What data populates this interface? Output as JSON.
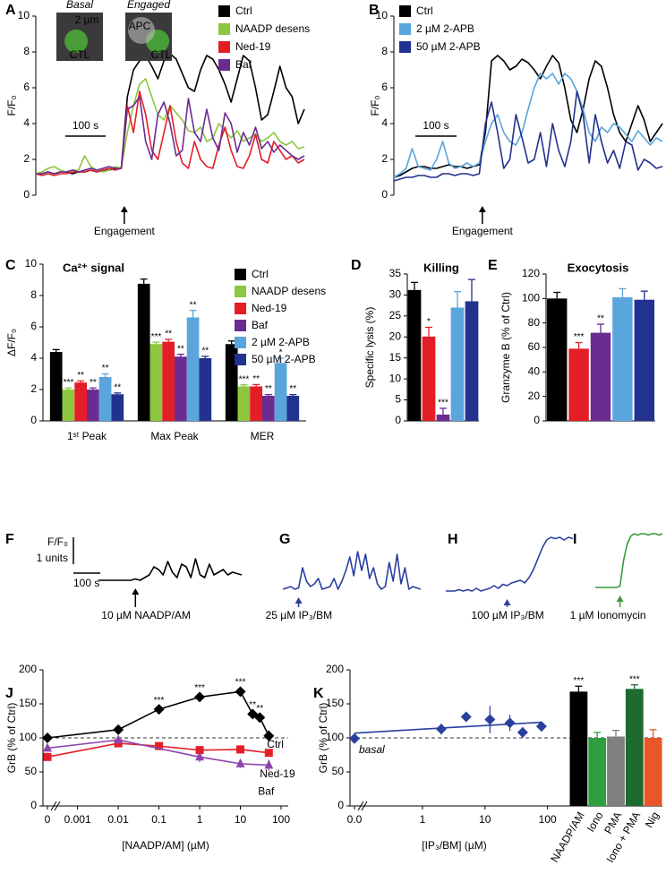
{
  "chart_data": [
    {
      "type": "line",
      "panel": "A",
      "ylabel": "F/F₀",
      "ylim": [
        0,
        10
      ],
      "yticks": [
        0,
        2,
        4,
        6,
        8,
        10
      ],
      "scale_bar": "100 s",
      "annotation": "Engagement",
      "insets": [
        {
          "title": "Basal",
          "labels": [
            "2 µm",
            "CTL"
          ]
        },
        {
          "title": "Engaged",
          "labels": [
            "APC",
            "CTL"
          ]
        }
      ],
      "series": [
        {
          "name": "Ctrl",
          "color": "#000000",
          "values": [
            1.2,
            1.2,
            1.3,
            1.2,
            1.3,
            1.3,
            1.2,
            1.3,
            1.3,
            1.4,
            1.3,
            1.4,
            1.4,
            1.5,
            1.5,
            5.5,
            7.0,
            7.5,
            7.8,
            7.2,
            6.5,
            7.5,
            7.9,
            7.6,
            6.8,
            6.0,
            5.8,
            7.0,
            7.8,
            7.6,
            7.0,
            6.2,
            5.2,
            6.5,
            7.8,
            7.5,
            6.0,
            4.2,
            4.5,
            5.8,
            7.2,
            6.0,
            5.5,
            4.0,
            4.8
          ]
        },
        {
          "name": "NAADP desens",
          "color": "#8dc63f",
          "values": [
            1.2,
            1.3,
            1.5,
            1.6,
            1.4,
            1.3,
            1.4,
            1.4,
            2.2,
            1.6,
            1.4,
            1.3,
            1.4,
            1.6,
            1.5,
            3.5,
            5.0,
            6.2,
            6.5,
            5.5,
            4.5,
            4.2,
            5.0,
            4.6,
            4.2,
            3.6,
            3.5,
            3.8,
            3.0,
            3.2,
            4.0,
            3.6,
            3.2,
            3.6,
            3.0,
            3.2,
            3.4,
            3.0,
            3.2,
            3.5,
            3.0,
            2.8,
            3.0,
            2.6,
            2.7
          ]
        },
        {
          "name": "Ned-19",
          "color": "#e41e26",
          "values": [
            1.2,
            1.1,
            1.2,
            1.1,
            1.2,
            1.2,
            1.3,
            1.3,
            1.3,
            1.4,
            1.3,
            1.4,
            1.5,
            1.4,
            1.5,
            5.0,
            3.5,
            5.8,
            4.5,
            2.5,
            2.0,
            3.5,
            5.0,
            3.0,
            1.8,
            1.5,
            3.0,
            2.0,
            1.6,
            1.5,
            2.8,
            3.8,
            2.5,
            1.6,
            1.5,
            2.2,
            3.4,
            2.0,
            1.8,
            3.0,
            2.5,
            2.0,
            2.2,
            1.8,
            2.0
          ]
        },
        {
          "name": "Baf",
          "color": "#6a2c91",
          "values": [
            1.2,
            1.2,
            1.3,
            1.2,
            1.3,
            1.3,
            1.4,
            1.3,
            1.4,
            1.5,
            1.4,
            1.5,
            1.6,
            1.5,
            1.5,
            4.8,
            5.0,
            5.5,
            3.0,
            2.0,
            4.5,
            5.2,
            4.0,
            2.2,
            2.5,
            5.4,
            3.5,
            3.0,
            4.8,
            3.2,
            2.5,
            4.6,
            4.0,
            2.4,
            3.5,
            2.8,
            3.8,
            2.6,
            3.0,
            2.4,
            2.8,
            2.5,
            2.2,
            2.0,
            2.2
          ]
        }
      ]
    },
    {
      "type": "line",
      "panel": "B",
      "ylabel": "F/F₀",
      "ylim": [
        0,
        10
      ],
      "yticks": [
        0,
        2,
        4,
        6,
        8,
        10
      ],
      "scale_bar": "100 s",
      "annotation": "Engagement",
      "series": [
        {
          "name": "Ctrl",
          "color": "#000000",
          "values": [
            1.0,
            1.1,
            1.3,
            1.5,
            1.6,
            1.6,
            1.5,
            1.5,
            1.6,
            1.7,
            1.6,
            1.6,
            1.5,
            1.6,
            1.7,
            3.5,
            7.5,
            7.8,
            7.5,
            7.0,
            7.2,
            7.6,
            7.4,
            7.0,
            6.5,
            7.2,
            7.8,
            7.4,
            6.0,
            4.2,
            3.5,
            4.8,
            6.5,
            7.5,
            7.2,
            6.0,
            4.5,
            3.5,
            3.0,
            4.0,
            5.0,
            4.2,
            3.0,
            3.5,
            4.0
          ]
        },
        {
          "name": "2 µM 2-APB",
          "color": "#5aa6dc",
          "values": [
            1.0,
            1.2,
            1.5,
            2.6,
            1.6,
            1.5,
            1.4,
            2.0,
            3.0,
            1.8,
            1.5,
            1.6,
            1.8,
            1.6,
            1.8,
            3.0,
            4.0,
            4.5,
            3.5,
            3.0,
            2.8,
            3.5,
            4.8,
            6.0,
            6.8,
            6.5,
            6.8,
            6.2,
            6.8,
            6.5,
            5.8,
            4.8,
            3.5,
            3.0,
            3.8,
            3.5,
            4.0,
            3.8,
            3.4,
            3.0,
            3.6,
            3.2,
            2.8,
            3.2,
            3.0
          ]
        },
        {
          "name": "50 µM 2-APB",
          "color": "#23318f",
          "values": [
            0.8,
            0.9,
            1.0,
            1.0,
            1.1,
            1.1,
            1.0,
            1.0,
            1.2,
            1.2,
            1.1,
            1.2,
            1.2,
            1.1,
            1.2,
            4.0,
            5.2,
            3.5,
            1.5,
            2.0,
            4.5,
            3.2,
            1.8,
            2.0,
            3.5,
            1.6,
            4.0,
            2.5,
            1.6,
            3.0,
            5.8,
            4.5,
            1.8,
            4.5,
            3.0,
            1.8,
            2.5,
            1.5,
            3.0,
            2.8,
            1.4,
            2.0,
            1.8,
            1.5,
            1.6
          ]
        }
      ]
    },
    {
      "type": "bar",
      "panel": "C",
      "title": "Ca²⁺ signal",
      "ylabel": "ΔF/F₀",
      "ylim": [
        0,
        10
      ],
      "yticks": [
        0,
        2,
        4,
        6,
        8,
        10
      ],
      "categories": [
        "1ˢᵗ Peak",
        "Max Peak",
        "MER"
      ],
      "series": [
        {
          "name": "Ctrl",
          "color": "#000000",
          "values": [
            4.4,
            8.75,
            4.9
          ],
          "errors": [
            0.15,
            0.3,
            0.2
          ],
          "significance": [
            null,
            null,
            null
          ]
        },
        {
          "name": "NAADP desens",
          "color": "#8dc63f",
          "values": [
            2.0,
            4.9,
            2.2
          ],
          "errors": [
            0.1,
            0.12,
            0.1
          ],
          "significance": [
            "***",
            "***",
            "***"
          ]
        },
        {
          "name": "Ned-19",
          "color": "#e41e26",
          "values": [
            2.45,
            5.05,
            2.2
          ],
          "errors": [
            0.1,
            0.15,
            0.12
          ],
          "significance": [
            "**",
            "**",
            "**"
          ]
        },
        {
          "name": "Baf",
          "color": "#6a2c91",
          "values": [
            2.0,
            4.1,
            1.6
          ],
          "errors": [
            0.1,
            0.15,
            0.08
          ],
          "significance": [
            "**",
            "**",
            "**"
          ]
        },
        {
          "name": "2 µM 2-APB",
          "color": "#5aa6dc",
          "values": [
            2.8,
            6.6,
            3.7
          ],
          "errors": [
            0.2,
            0.45,
            0.3
          ],
          "significance": [
            "**",
            "**",
            "*"
          ]
        },
        {
          "name": "50 µM 2-APB",
          "color": "#23318f",
          "values": [
            1.7,
            4.0,
            1.6
          ],
          "errors": [
            0.08,
            0.12,
            0.08
          ],
          "significance": [
            "**",
            "**",
            "**"
          ]
        }
      ]
    },
    {
      "type": "bar",
      "panel": "D",
      "title": "Killing",
      "ylabel": "Specific lysis (%)",
      "ylim": [
        0,
        35
      ],
      "yticks": [
        0,
        5,
        10,
        15,
        20,
        25,
        30,
        35
      ],
      "values": [
        31.2,
        20.1,
        1.5,
        27.0,
        28.5
      ],
      "errors": [
        1.8,
        2.2,
        1.5,
        3.8,
        5.2
      ],
      "colors": [
        "#000000",
        "#e41e26",
        "#6a2c91",
        "#5aa6dc",
        "#23318f"
      ],
      "significance": [
        null,
        "*",
        "***",
        null,
        null
      ]
    },
    {
      "type": "bar",
      "panel": "E",
      "title": "Exocytosis",
      "ylabel": "Granzyme B (% of Ctrl)",
      "ylim": [
        0,
        120
      ],
      "yticks": [
        0,
        20,
        40,
        60,
        80,
        100,
        120
      ],
      "values": [
        100,
        59,
        72,
        101,
        99
      ],
      "errors": [
        5,
        5,
        7,
        7,
        7
      ],
      "colors": [
        "#000000",
        "#e41e26",
        "#6a2c91",
        "#5aa6dc",
        "#23318f"
      ],
      "significance": [
        null,
        "***",
        "**",
        null,
        null
      ]
    },
    {
      "type": "line",
      "panel": "F",
      "stimulus": "10 µM NAADP/AM",
      "color": "#000000",
      "y_scale_label": "F/F₀",
      "y_scale_units": "1 units",
      "scale_bar": "100 s",
      "values": [
        1,
        1,
        1,
        1,
        1,
        1,
        1,
        1,
        1.05,
        1,
        1.1,
        1.2,
        1.5,
        1.4,
        1.2,
        1.7,
        1.3,
        1.1,
        1.6,
        1.5,
        1.1,
        1.8,
        1.2,
        1.1,
        1.6,
        1.2,
        1.3,
        1.4,
        1.2,
        1.3,
        1.25,
        1.2
      ]
    },
    {
      "type": "line",
      "panel": "G",
      "stimulus": "25 µM IP₃/BM",
      "color": "#2a3f9e",
      "values": [
        1,
        1.05,
        1.1,
        1,
        1.05,
        1.8,
        1.3,
        1.1,
        1.2,
        1.4,
        1,
        1.05,
        1.1,
        1.4,
        1,
        1.3,
        1.7,
        2.2,
        1.5,
        2.4,
        1.7,
        2.3,
        1.4,
        1.8,
        1.2,
        1,
        1.1,
        2.0,
        1.3,
        2.3,
        1.2,
        1.8,
        1.0,
        1.1,
        1.05,
        1.0
      ]
    },
    {
      "type": "line",
      "panel": "H",
      "stimulus": "100 µM IP₃/BM",
      "color": "#2a3f9e",
      "values": [
        1,
        1,
        1,
        1.05,
        1,
        1.05,
        1,
        1.1,
        1,
        1.05,
        1.1,
        1.2,
        1.1,
        1.25,
        1.2,
        1.3,
        1.35,
        1.4,
        1.3,
        1.5,
        1.8,
        2.2,
        2.6,
        2.9,
        3.0,
        2.95,
        3.0,
        2.9,
        3.0,
        2.95
      ]
    },
    {
      "type": "line",
      "panel": "I",
      "stimulus": "1 µM Ionomycin",
      "color": "#3a9a3a",
      "values": [
        1,
        1,
        1,
        1,
        1,
        1,
        1,
        1.05,
        2.0,
        2.6,
        2.9,
        3.0,
        2.95,
        3.0,
        3.0,
        2.95,
        3.0,
        3.0,
        2.95,
        3.0
      ]
    },
    {
      "type": "scatter",
      "panel": "J",
      "xlabel": "[NAADP/AM] (µM)",
      "ylabel": "GrB (% of Ctrl)",
      "xlog": true,
      "xlim": [
        0,
        150
      ],
      "xticks": [
        0,
        0.001,
        0.01,
        0.1,
        1,
        10,
        100
      ],
      "ylim": [
        0,
        200
      ],
      "yticks": [
        0,
        50,
        100,
        150,
        200
      ],
      "reference": 100,
      "series": [
        {
          "name": "Ctrl",
          "color": "#000000",
          "marker": "diamond",
          "x": [
            0,
            0.01,
            0.1,
            1,
            10,
            20,
            30,
            50
          ],
          "values": [
            100,
            112,
            142,
            160,
            168,
            135,
            130,
            103
          ],
          "errors": [
            3,
            3,
            5,
            5,
            6,
            5,
            5,
            8
          ],
          "significance": [
            null,
            null,
            "***",
            "***",
            "***",
            "**",
            "**",
            null
          ]
        },
        {
          "name": "Ned-19",
          "color": "#e41e26",
          "marker": "square",
          "x": [
            0,
            0.01,
            0.1,
            1,
            10,
            50
          ],
          "values": [
            72,
            92,
            88,
            82,
            83,
            78
          ],
          "errors": [
            5,
            5,
            4,
            6,
            6,
            4
          ]
        },
        {
          "name": "Baf",
          "color": "#8e44ad",
          "marker": "triangle",
          "x": [
            0,
            0.01,
            1,
            10,
            50
          ],
          "values": [
            85,
            97,
            72,
            62,
            60
          ],
          "errors": [
            4,
            4,
            8,
            6,
            8
          ]
        }
      ]
    },
    {
      "type": "scatter",
      "panel": "K",
      "xlabel": "[IP₃/BM] (µM)",
      "xlabel_color": "#2a3f9e",
      "ylabel": "GrB (% of Ctrl)",
      "xlog": true,
      "xlim": [
        0,
        150
      ],
      "xticks": [
        {
          "value": 0,
          "label": "0.0"
        },
        1,
        10,
        100
      ],
      "ylim": [
        0,
        200
      ],
      "yticks": [
        0,
        50,
        100,
        150,
        200
      ],
      "reference": 100,
      "annotation": "basal",
      "trend": [
        107,
        123
      ],
      "series": [
        {
          "color": "#2a3f9e",
          "marker": "diamond",
          "x": [
            0,
            2,
            5,
            12,
            25,
            40,
            80
          ],
          "values": [
            99,
            113,
            131,
            127,
            122,
            108,
            117
          ],
          "errors": [
            3,
            8,
            6,
            20,
            12,
            8,
            6
          ]
        }
      ],
      "bars": {
        "categories": [
          "NAADP/AM",
          "Iono",
          "PMA",
          "Iono + PMA",
          "Nig"
        ],
        "values": [
          168,
          100,
          102,
          172,
          100
        ],
        "errors": [
          8,
          8,
          9,
          6,
          12
        ],
        "colors": [
          "#000000",
          "#2e9e3e",
          "#808080",
          "#1f6b2f",
          "#e8562a"
        ],
        "significance": [
          "***",
          null,
          null,
          "***",
          null
        ]
      }
    }
  ]
}
